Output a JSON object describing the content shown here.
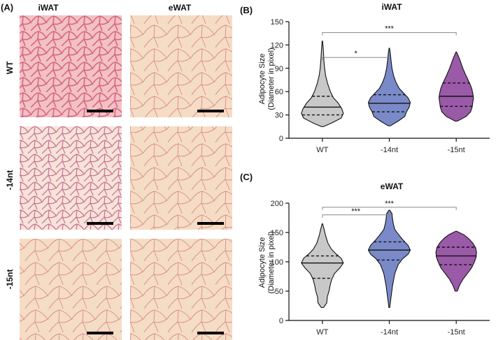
{
  "panel_a": {
    "letter": "(A)",
    "columns": [
      "iWAT",
      "eWAT"
    ],
    "rows": [
      "WT",
      "-14nt",
      "-15nt"
    ]
  },
  "chart_data": [
    {
      "letter": "(B)",
      "type": "violin",
      "title": "iWAT",
      "ylabel": "Adipocyte Size",
      "ylabel_sub": "(Diameter in pixel)",
      "categories": [
        "WT",
        "-14nt",
        "-15nt"
      ],
      "ylim": [
        0,
        150
      ],
      "yticks": [
        0,
        30,
        60,
        90,
        120,
        150
      ],
      "colors": [
        "#c8c8c8",
        "#7a8ac8",
        "#9a5aa8"
      ],
      "series": [
        {
          "category": "WT",
          "min": 15,
          "max": 125,
          "q1": 30,
          "median": 40,
          "q3": 54,
          "profile": [
            [
              15,
              0.05
            ],
            [
              20,
              0.45
            ],
            [
              26,
              0.85
            ],
            [
              32,
              0.95
            ],
            [
              38,
              0.88
            ],
            [
              45,
              0.72
            ],
            [
              52,
              0.5
            ],
            [
              60,
              0.36
            ],
            [
              70,
              0.24
            ],
            [
              80,
              0.15
            ],
            [
              90,
              0.1
            ],
            [
              100,
              0.07
            ],
            [
              110,
              0.05
            ],
            [
              118,
              0.03
            ],
            [
              125,
              0.01
            ]
          ]
        },
        {
          "category": "-14nt",
          "min": 16,
          "max": 116,
          "q1": 34,
          "median": 45,
          "q3": 56,
          "profile": [
            [
              16,
              0.05
            ],
            [
              22,
              0.4
            ],
            [
              28,
              0.7
            ],
            [
              34,
              0.78
            ],
            [
              40,
              0.9
            ],
            [
              46,
              0.95
            ],
            [
              52,
              0.85
            ],
            [
              58,
              0.65
            ],
            [
              64,
              0.45
            ],
            [
              72,
              0.3
            ],
            [
              80,
              0.2
            ],
            [
              90,
              0.12
            ],
            [
              100,
              0.08
            ],
            [
              110,
              0.04
            ],
            [
              116,
              0.01
            ]
          ]
        },
        {
          "category": "-15nt",
          "min": 22,
          "max": 111,
          "q1": 41,
          "median": 54,
          "q3": 71,
          "profile": [
            [
              22,
              0.05
            ],
            [
              28,
              0.45
            ],
            [
              34,
              0.65
            ],
            [
              40,
              0.72
            ],
            [
              46,
              0.75
            ],
            [
              52,
              0.78
            ],
            [
              58,
              0.75
            ],
            [
              64,
              0.7
            ],
            [
              70,
              0.62
            ],
            [
              76,
              0.52
            ],
            [
              82,
              0.42
            ],
            [
              90,
              0.3
            ],
            [
              98,
              0.2
            ],
            [
              104,
              0.12
            ],
            [
              111,
              0.01
            ]
          ]
        }
      ],
      "significance": [
        {
          "from": "WT",
          "to": "-14nt",
          "label": "*",
          "y": 104
        },
        {
          "from": "WT",
          "to": "-15nt",
          "label": "***",
          "y": 136
        }
      ]
    },
    {
      "letter": "(C)",
      "type": "violin",
      "title": "eWAT",
      "ylabel": "Adipocyte Size",
      "ylabel_sub": "(Diameter in pixel)",
      "categories": [
        "WT",
        "-14nt",
        "-15nt"
      ],
      "ylim": [
        0,
        200
      ],
      "yticks": [
        0,
        50,
        100,
        150,
        200
      ],
      "colors": [
        "#c8c8c8",
        "#7a8ac8",
        "#9a5aa8"
      ],
      "series": [
        {
          "category": "WT",
          "min": 22,
          "max": 165,
          "q1": 72,
          "median": 98,
          "q3": 110,
          "profile": [
            [
              22,
              0.05
            ],
            [
              30,
              0.2
            ],
            [
              40,
              0.22
            ],
            [
              50,
              0.3
            ],
            [
              60,
              0.35
            ],
            [
              70,
              0.42
            ],
            [
              80,
              0.55
            ],
            [
              90,
              0.8
            ],
            [
              98,
              0.95
            ],
            [
              106,
              0.85
            ],
            [
              114,
              0.6
            ],
            [
              122,
              0.4
            ],
            [
              132,
              0.25
            ],
            [
              145,
              0.14
            ],
            [
              155,
              0.08
            ],
            [
              165,
              0.01
            ]
          ]
        },
        {
          "category": "-14nt",
          "min": 22,
          "max": 188,
          "q1": 103,
          "median": 120,
          "q3": 134,
          "profile": [
            [
              22,
              0.02
            ],
            [
              40,
              0.08
            ],
            [
              60,
              0.15
            ],
            [
              80,
              0.25
            ],
            [
              95,
              0.4
            ],
            [
              105,
              0.6
            ],
            [
              113,
              0.85
            ],
            [
              120,
              0.95
            ],
            [
              128,
              0.85
            ],
            [
              136,
              0.65
            ],
            [
              145,
              0.45
            ],
            [
              155,
              0.25
            ],
            [
              165,
              0.18
            ],
            [
              175,
              0.14
            ],
            [
              182,
              0.12
            ],
            [
              188,
              0.02
            ]
          ]
        },
        {
          "category": "-15nt",
          "min": 50,
          "max": 152,
          "q1": 95,
          "median": 110,
          "q3": 125,
          "profile": [
            [
              50,
              0.05
            ],
            [
              60,
              0.15
            ],
            [
              70,
              0.3
            ],
            [
              80,
              0.5
            ],
            [
              90,
              0.7
            ],
            [
              100,
              0.82
            ],
            [
              108,
              0.9
            ],
            [
              116,
              0.92
            ],
            [
              124,
              0.88
            ],
            [
              132,
              0.75
            ],
            [
              140,
              0.55
            ],
            [
              146,
              0.35
            ],
            [
              152,
              0.02
            ]
          ]
        }
      ],
      "significance": [
        {
          "from": "WT",
          "to": "-14nt",
          "label": "***",
          "y": 180
        },
        {
          "from": "WT",
          "to": "-15nt",
          "label": "***",
          "y": 193
        }
      ]
    }
  ]
}
